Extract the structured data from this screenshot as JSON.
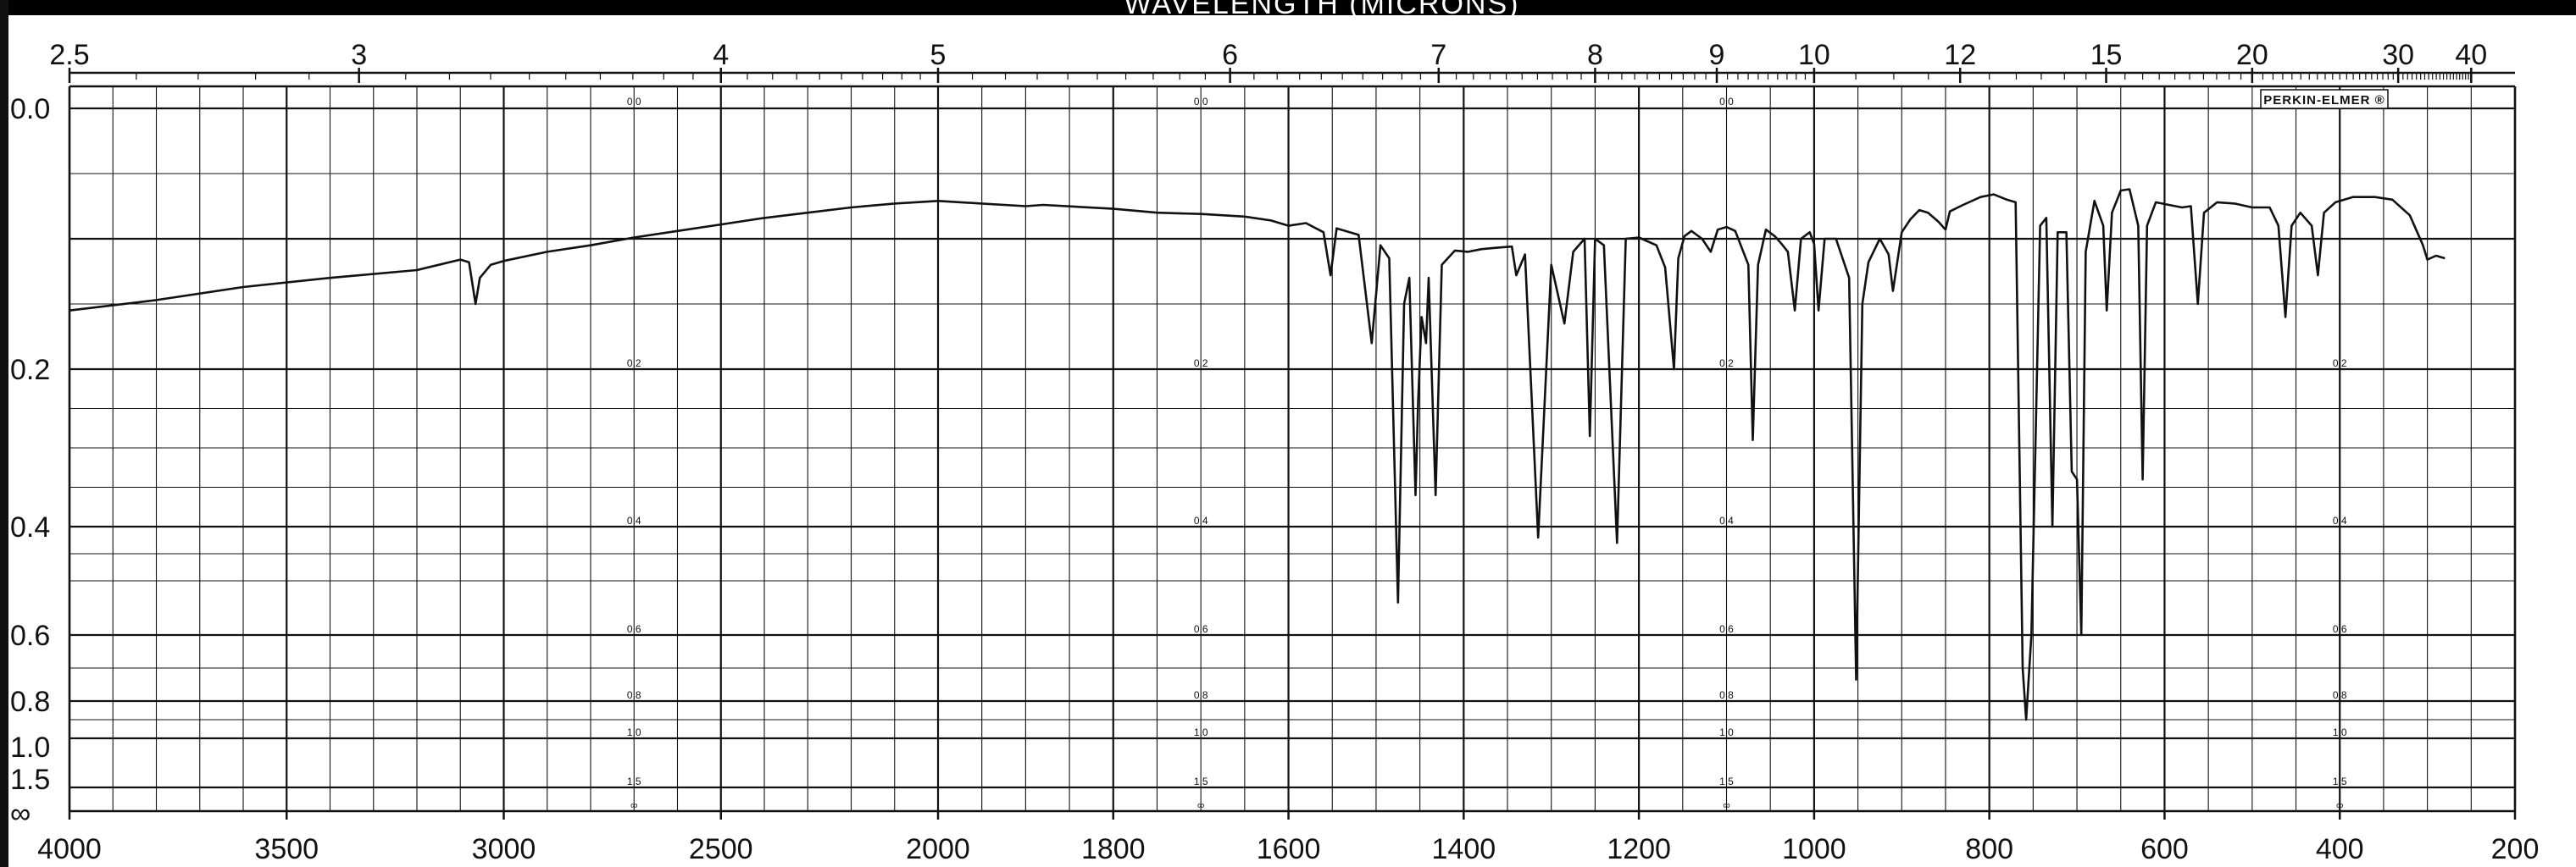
{
  "chart_data": {
    "type": "line",
    "title": "WAVELENGTH (MICRONS)",
    "brand": "PERKIN-ELMER ®",
    "x_axis": {
      "label": "",
      "range": [
        4000,
        200
      ],
      "ticks": [
        4000,
        3500,
        3000,
        2500,
        2000,
        1800,
        1600,
        1400,
        1200,
        1000,
        800,
        600,
        400,
        200
      ],
      "tick_labels": [
        "4000",
        "3500",
        "3000",
        "2500",
        "2000",
        "1800",
        "1600",
        "1400",
        "1200",
        "1000",
        "800",
        "600",
        "400",
        "200"
      ]
    },
    "top_axis": {
      "ticks": [
        2.5,
        3,
        4,
        5,
        6,
        7,
        8,
        9,
        10,
        12,
        15,
        20,
        30,
        40
      ],
      "tick_labels": [
        "2.5",
        "3",
        "4",
        "5",
        "6",
        "7",
        "8",
        "9",
        "10",
        "12",
        "15",
        "20",
        "30",
        "40"
      ]
    },
    "y_axis": {
      "label": "",
      "scale": "absorbance",
      "range": [
        0.0,
        2.0
      ],
      "tick_labels": [
        "0.0",
        "0.2",
        "0.4",
        "0.6",
        "0.8",
        "1.0",
        "1.5",
        "∞"
      ],
      "grid_labels": [
        "0.0",
        "0.2",
        "0.4",
        "0.6",
        "0.8",
        "1.0",
        "1.5",
        "∞"
      ]
    },
    "grid": true,
    "legend": "none",
    "series": [
      {
        "color": "#111111",
        "points": [
          [
            4000,
            0.155
          ],
          [
            3800,
            0.147
          ],
          [
            3600,
            0.137
          ],
          [
            3400,
            0.13
          ],
          [
            3200,
            0.124
          ],
          [
            3100,
            0.116
          ],
          [
            3080,
            0.118
          ],
          [
            3065,
            0.15
          ],
          [
            3055,
            0.13
          ],
          [
            3030,
            0.12
          ],
          [
            3000,
            0.117
          ],
          [
            2900,
            0.11
          ],
          [
            2800,
            0.105
          ],
          [
            2700,
            0.099
          ],
          [
            2600,
            0.094
          ],
          [
            2500,
            0.089
          ],
          [
            2400,
            0.084
          ],
          [
            2300,
            0.08
          ],
          [
            2200,
            0.076
          ],
          [
            2100,
            0.073
          ],
          [
            2000,
            0.071
          ],
          [
            1950,
            0.073
          ],
          [
            1900,
            0.075
          ],
          [
            1880,
            0.074
          ],
          [
            1800,
            0.077
          ],
          [
            1750,
            0.08
          ],
          [
            1700,
            0.081
          ],
          [
            1650,
            0.083
          ],
          [
            1620,
            0.086
          ],
          [
            1600,
            0.09
          ],
          [
            1580,
            0.088
          ],
          [
            1560,
            0.095
          ],
          [
            1552,
            0.128
          ],
          [
            1545,
            0.092
          ],
          [
            1520,
            0.097
          ],
          [
            1505,
            0.18
          ],
          [
            1495,
            0.105
          ],
          [
            1485,
            0.115
          ],
          [
            1475,
            0.54
          ],
          [
            1468,
            0.15
          ],
          [
            1462,
            0.13
          ],
          [
            1455,
            0.36
          ],
          [
            1452,
            0.24
          ],
          [
            1448,
            0.16
          ],
          [
            1443,
            0.18
          ],
          [
            1440,
            0.13
          ],
          [
            1432,
            0.36
          ],
          [
            1425,
            0.12
          ],
          [
            1410,
            0.109
          ],
          [
            1395,
            0.11
          ],
          [
            1380,
            0.108
          ],
          [
            1365,
            0.107
          ],
          [
            1345,
            0.106
          ],
          [
            1340,
            0.128
          ],
          [
            1330,
            0.112
          ],
          [
            1315,
            0.42
          ],
          [
            1300,
            0.12
          ],
          [
            1285,
            0.165
          ],
          [
            1275,
            0.11
          ],
          [
            1262,
            0.1
          ],
          [
            1256,
            0.285
          ],
          [
            1250,
            0.1
          ],
          [
            1240,
            0.105
          ],
          [
            1225,
            0.43
          ],
          [
            1215,
            0.1
          ],
          [
            1200,
            0.099
          ],
          [
            1180,
            0.105
          ],
          [
            1170,
            0.122
          ],
          [
            1160,
            0.2
          ],
          [
            1155,
            0.115
          ],
          [
            1148,
            0.098
          ],
          [
            1140,
            0.094
          ],
          [
            1128,
            0.1
          ],
          [
            1118,
            0.11
          ],
          [
            1110,
            0.093
          ],
          [
            1100,
            0.091
          ],
          [
            1090,
            0.094
          ],
          [
            1075,
            0.12
          ],
          [
            1070,
            0.29
          ],
          [
            1064,
            0.12
          ],
          [
            1055,
            0.093
          ],
          [
            1045,
            0.098
          ],
          [
            1037,
            0.104
          ],
          [
            1030,
            0.11
          ],
          [
            1022,
            0.155
          ],
          [
            1015,
            0.1
          ],
          [
            1005,
            0.095
          ],
          [
            1000,
            0.104
          ],
          [
            995,
            0.155
          ],
          [
            988,
            0.1
          ],
          [
            975,
            0.1
          ],
          [
            960,
            0.13
          ],
          [
            952,
            0.735
          ],
          [
            945,
            0.15
          ],
          [
            938,
            0.118
          ],
          [
            925,
            0.1
          ],
          [
            915,
            0.112
          ],
          [
            910,
            0.14
          ],
          [
            900,
            0.095
          ],
          [
            890,
            0.085
          ],
          [
            880,
            0.078
          ],
          [
            870,
            0.08
          ],
          [
            858,
            0.087
          ],
          [
            850,
            0.093
          ],
          [
            845,
            0.079
          ],
          [
            830,
            0.074
          ],
          [
            810,
            0.068
          ],
          [
            795,
            0.066
          ],
          [
            780,
            0.07
          ],
          [
            770,
            0.072
          ],
          [
            762,
            0.7
          ],
          [
            758,
            0.9
          ],
          [
            752,
            0.6
          ],
          [
            742,
            0.09
          ],
          [
            735,
            0.084
          ],
          [
            728,
            0.4
          ],
          [
            722,
            0.095
          ],
          [
            712,
            0.095
          ],
          [
            706,
            0.33
          ],
          [
            700,
            0.34
          ],
          [
            695,
            0.6
          ],
          [
            690,
            0.11
          ],
          [
            680,
            0.071
          ],
          [
            670,
            0.09
          ],
          [
            666,
            0.155
          ],
          [
            660,
            0.08
          ],
          [
            650,
            0.063
          ],
          [
            640,
            0.062
          ],
          [
            630,
            0.09
          ],
          [
            625,
            0.34
          ],
          [
            620,
            0.09
          ],
          [
            610,
            0.072
          ],
          [
            595,
            0.074
          ],
          [
            580,
            0.076
          ],
          [
            570,
            0.075
          ],
          [
            562,
            0.15
          ],
          [
            555,
            0.08
          ],
          [
            540,
            0.072
          ],
          [
            520,
            0.073
          ],
          [
            500,
            0.076
          ],
          [
            480,
            0.076
          ],
          [
            470,
            0.09
          ],
          [
            462,
            0.16
          ],
          [
            455,
            0.09
          ],
          [
            445,
            0.08
          ],
          [
            432,
            0.09
          ],
          [
            425,
            0.128
          ],
          [
            418,
            0.08
          ],
          [
            405,
            0.072
          ],
          [
            385,
            0.068
          ],
          [
            360,
            0.068
          ],
          [
            340,
            0.07
          ],
          [
            320,
            0.082
          ],
          [
            305,
            0.105
          ],
          [
            300,
            0.116
          ],
          [
            290,
            0.113
          ],
          [
            280,
            0.115
          ]
        ]
      }
    ]
  }
}
